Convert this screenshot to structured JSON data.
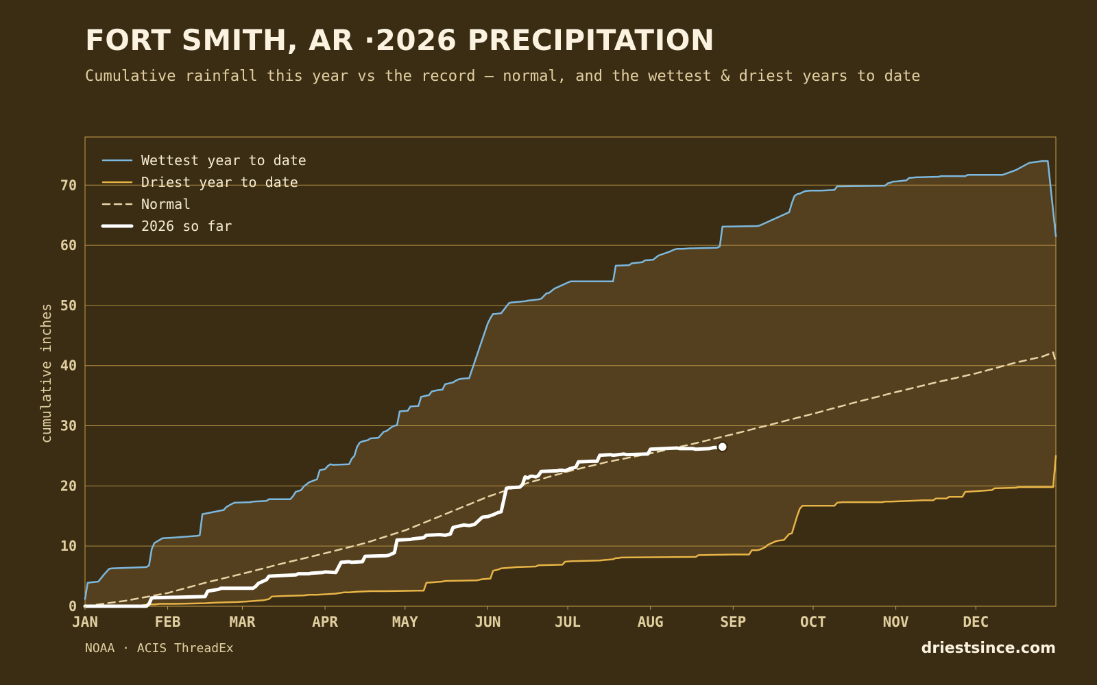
{
  "header": {
    "title": "FORT SMITH, AR ·2026 PRECIPITATION",
    "subtitle": "Cumulative rainfall this year vs the record — normal, and the wettest & driest years to date"
  },
  "footer": {
    "source": "NOAA · ACIS ThreadEx",
    "site": "driestsince.com"
  },
  "colors": {
    "background": "#3a2d14",
    "band_fill": "#54401e",
    "grid": "#c8a04a",
    "wettest": "#7db8df",
    "driest": "#e8b447",
    "normal": "#e6d4a6",
    "current": "#ffffff",
    "text": "#e2cfa0"
  },
  "chart_data": {
    "type": "line",
    "title": "FORT SMITH, AR ·2026 PRECIPITATION",
    "xlabel": "",
    "ylabel": "cumulative inches",
    "xlim": [
      1,
      365
    ],
    "ylim": [
      0,
      78
    ],
    "yticks": [
      0,
      10,
      20,
      30,
      40,
      50,
      60,
      70
    ],
    "xtick_labels": [
      {
        "label": "JAN",
        "day": 1
      },
      {
        "label": "FEB",
        "day": 32
      },
      {
        "label": "MAR",
        "day": 60
      },
      {
        "label": "APR",
        "day": 91
      },
      {
        "label": "MAY",
        "day": 121
      },
      {
        "label": "JUN",
        "day": 152
      },
      {
        "label": "JUL",
        "day": 182
      },
      {
        "label": "AUG",
        "day": 213
      },
      {
        "label": "SEP",
        "day": 244
      },
      {
        "label": "OCT",
        "day": 274
      },
      {
        "label": "NOV",
        "day": 305
      },
      {
        "label": "DEC",
        "day": 335
      }
    ],
    "grid": true,
    "legend_position": "top-left",
    "series": [
      {
        "name": "Wettest year to date",
        "style": "solid",
        "x": [
          1,
          2,
          6,
          8,
          10,
          11,
          24,
          25,
          26,
          27,
          30,
          34,
          43,
          44,
          45,
          53,
          54,
          56,
          57,
          63,
          64,
          69,
          70,
          78,
          79,
          80,
          82,
          83,
          85,
          88,
          89,
          91,
          92,
          93,
          94,
          100,
          101,
          102,
          103,
          104,
          105,
          107,
          108,
          111,
          113,
          114,
          116,
          117,
          118,
          119,
          122,
          123,
          126,
          127,
          129,
          130,
          131,
          133,
          135,
          136,
          139,
          140,
          141,
          142,
          144,
          145,
          152,
          153,
          154,
          155,
          157,
          160,
          161,
          166,
          167,
          171,
          172,
          174,
          175,
          177,
          182,
          183,
          199,
          200,
          205,
          206,
          210,
          211,
          214,
          216,
          220,
          221,
          222,
          223,
          224,
          225,
          228,
          229,
          238,
          239,
          240,
          253,
          254,
          265,
          266,
          267,
          268,
          269,
          270,
          271,
          273,
          277,
          282,
          283,
          301,
          302,
          303,
          304,
          305,
          307,
          309,
          310,
          313,
          314,
          321,
          322,
          331,
          332,
          345,
          350,
          355,
          360,
          361,
          362,
          365
        ],
        "y": [
          1.2,
          3.9,
          4.1,
          5.2,
          6.2,
          6.3,
          6.5,
          6.8,
          9.5,
          10.5,
          11.3,
          11.4,
          11.7,
          11.8,
          15.3,
          16.0,
          16.5,
          17.0,
          17.2,
          17.3,
          17.4,
          17.5,
          17.8,
          17.8,
          18.3,
          19.0,
          19.3,
          19.9,
          20.6,
          21.1,
          22.6,
          22.8,
          23.3,
          23.6,
          23.5,
          23.6,
          24.5,
          25.0,
          26.5,
          27.2,
          27.4,
          27.6,
          27.9,
          28.0,
          29.0,
          29.1,
          29.8,
          30.0,
          30.1,
          32.4,
          32.5,
          33.2,
          33.3,
          34.8,
          35.0,
          35.1,
          35.7,
          35.9,
          36.0,
          36.9,
          37.2,
          37.5,
          37.7,
          37.8,
          37.9,
          37.9,
          47.0,
          47.9,
          48.6,
          48.6,
          48.7,
          50.4,
          50.5,
          50.7,
          50.8,
          51.0,
          51.1,
          52.0,
          52.1,
          52.8,
          53.8,
          54.0,
          54.0,
          56.6,
          56.7,
          57.0,
          57.2,
          57.5,
          57.6,
          58.3,
          58.9,
          59.1,
          59.3,
          59.4,
          59.4,
          59.4,
          59.5,
          59.5,
          59.6,
          59.8,
          63.1,
          63.2,
          63.3,
          65.5,
          67.0,
          68.2,
          68.5,
          68.6,
          68.8,
          69.0,
          69.1,
          69.1,
          69.2,
          69.8,
          69.9,
          70.3,
          70.4,
          70.6,
          70.6,
          70.7,
          70.8,
          71.2,
          71.3,
          71.3,
          71.4,
          71.5,
          71.5,
          71.7,
          71.7,
          72.5,
          73.7,
          74.0,
          74.0,
          74.0,
          61.5
        ]
      },
      {
        "name": "Driest year to date",
        "style": "solid",
        "x": [
          1,
          20,
          22,
          23,
          25,
          27,
          29,
          35,
          46,
          50,
          58,
          62,
          68,
          70,
          71,
          75,
          83,
          85,
          88,
          92,
          95,
          98,
          100,
          103,
          108,
          114,
          126,
          128,
          129,
          135,
          136,
          148,
          150,
          153,
          154,
          156,
          157,
          163,
          170,
          171,
          180,
          181,
          184,
          185,
          194,
          196,
          199,
          200,
          201,
          202,
          230,
          231,
          232,
          244,
          250,
          251,
          253,
          254,
          256,
          257,
          260,
          261,
          263,
          265,
          266,
          268,
          269,
          270,
          272,
          282,
          283,
          285,
          286,
          300,
          301,
          302,
          303,
          310,
          315,
          319,
          320,
          324,
          325,
          330,
          331,
          341,
          342,
          350,
          351,
          363,
          364,
          365
        ],
        "y": [
          0.0,
          0.0,
          0.1,
          0.2,
          0.3,
          0.3,
          0.4,
          0.4,
          0.5,
          0.6,
          0.7,
          0.8,
          1.0,
          1.2,
          1.6,
          1.7,
          1.8,
          1.9,
          1.9,
          2.0,
          2.1,
          2.3,
          2.3,
          2.4,
          2.5,
          2.5,
          2.6,
          2.6,
          3.9,
          4.1,
          4.2,
          4.3,
          4.5,
          4.6,
          5.9,
          6.1,
          6.3,
          6.5,
          6.6,
          6.8,
          6.9,
          7.4,
          7.5,
          7.5,
          7.6,
          7.7,
          7.8,
          8.0,
          8.0,
          8.1,
          8.2,
          8.5,
          8.5,
          8.6,
          8.6,
          9.3,
          9.3,
          9.4,
          9.8,
          10.2,
          10.8,
          10.9,
          11.0,
          12.0,
          12.1,
          15.0,
          16.2,
          16.7,
          16.7,
          16.7,
          17.2,
          17.3,
          17.3,
          17.3,
          17.4,
          17.4,
          17.4,
          17.5,
          17.6,
          17.6,
          17.9,
          17.9,
          18.2,
          18.2,
          19.0,
          19.3,
          19.6,
          19.7,
          19.8,
          19.8,
          19.8,
          25.0
        ]
      },
      {
        "name": "Normal",
        "style": "dashed",
        "x": [
          1,
          16,
          32,
          46,
          60,
          75,
          91,
          106,
          121,
          136,
          152,
          167,
          182,
          197,
          213,
          228,
          244,
          259,
          274,
          289,
          305,
          320,
          335,
          350,
          360,
          364,
          365
        ],
        "y": [
          0.0,
          0.9,
          2.2,
          3.9,
          5.4,
          7.1,
          8.8,
          10.5,
          12.6,
          15.3,
          18.2,
          20.5,
          22.4,
          24.0,
          25.4,
          26.9,
          28.6,
          30.3,
          32.0,
          33.8,
          35.6,
          37.2,
          38.7,
          40.5,
          41.5,
          42.2,
          40.5
        ]
      },
      {
        "name": "2026 so far",
        "style": "thick",
        "x": [
          1,
          24,
          25,
          26,
          46,
          47,
          51,
          52,
          64,
          65,
          66,
          69,
          70,
          80,
          81,
          85,
          86,
          90,
          91,
          95,
          97,
          100,
          101,
          105,
          106,
          114,
          115,
          117,
          118,
          123,
          124,
          128,
          129,
          134,
          136,
          138,
          139,
          142,
          143,
          145,
          147,
          150,
          152,
          154,
          156,
          157,
          159,
          160,
          164,
          165,
          166,
          167,
          168,
          169,
          170,
          171,
          172,
          178,
          179,
          180,
          181,
          182,
          183,
          185,
          186,
          191,
          193,
          194,
          198,
          199,
          203,
          204,
          212,
          213,
          223,
          224,
          229,
          230,
          235,
          236,
          237,
          238,
          239,
          240
        ],
        "y": [
          0.0,
          0.0,
          0.4,
          1.4,
          1.6,
          2.5,
          2.8,
          3.0,
          3.0,
          3.3,
          3.8,
          4.4,
          5.0,
          5.2,
          5.4,
          5.4,
          5.5,
          5.6,
          5.7,
          5.6,
          7.3,
          7.4,
          7.3,
          7.4,
          8.3,
          8.4,
          8.5,
          8.9,
          11.0,
          11.1,
          11.2,
          11.4,
          11.8,
          11.9,
          11.8,
          12.0,
          13.1,
          13.4,
          13.5,
          13.4,
          13.6,
          14.8,
          14.9,
          15.2,
          15.6,
          15.7,
          19.6,
          19.7,
          19.8,
          20.2,
          21.5,
          21.3,
          21.6,
          21.6,
          21.5,
          21.7,
          22.4,
          22.5,
          22.6,
          22.6,
          22.5,
          22.7,
          22.9,
          23.1,
          24.0,
          24.1,
          24.1,
          25.1,
          25.2,
          25.1,
          25.3,
          25.2,
          25.3,
          26.1,
          26.3,
          26.2,
          26.2,
          26.1,
          26.2,
          26.3,
          26.4,
          26.4,
          26.5,
          26.5
        ]
      }
    ],
    "current_point": {
      "x": 240,
      "y": 26.5
    }
  }
}
